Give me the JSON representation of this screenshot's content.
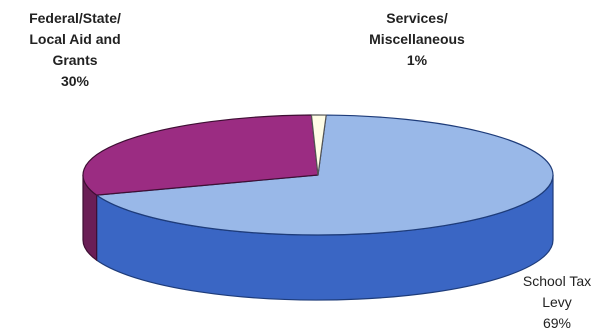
{
  "chart_data": {
    "type": "pie",
    "style": "3d",
    "slices": [
      {
        "label_lines": [
          "School Tax",
          "Levy"
        ],
        "value": 69,
        "value_label": "69%",
        "color": "#99B8E8",
        "side_color": "#3A66C4",
        "edge_color": "#1E3C7A"
      },
      {
        "label_lines": [
          "Federal/State/",
          "Local Aid and",
          "Grants"
        ],
        "value": 30,
        "value_label": "30%",
        "color": "#9B2C82",
        "side_color": "#6A1E56",
        "edge_color": "#3E0F33"
      },
      {
        "label_lines": [
          "Services/",
          "Miscellaneous"
        ],
        "value": 1,
        "value_label": "1%",
        "color": "#FFFDE6",
        "side_color": "#D8D4B0",
        "edge_color": "#555555"
      }
    ]
  }
}
